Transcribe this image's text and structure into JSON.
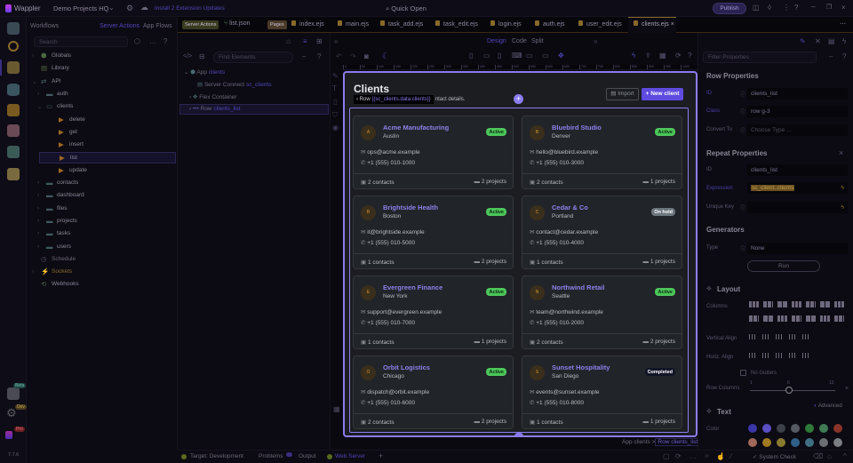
{
  "topbar": {
    "app_name": "Wappler",
    "project": "Demo Projects HQ",
    "updates": "Install 2 Extension Updates",
    "quick_open": "Quick Open",
    "publish": "Publish"
  },
  "rail": {
    "badges": [
      "Beta",
      "Dev",
      "Pro"
    ],
    "version": "7.7.6"
  },
  "workflows": {
    "title": "Workflows",
    "tab_server_actions": "Server Actions",
    "tab_app_flows": "App Flows",
    "search_placeholder": "Search",
    "items": [
      {
        "label": "Globals",
        "depth": 0,
        "icon": "cube-icon",
        "arrow": ">"
      },
      {
        "label": "Library",
        "depth": 0,
        "icon": "book-icon",
        "arrow": ""
      },
      {
        "label": "API",
        "depth": 0,
        "icon": "swap-icon",
        "arrow": "v"
      },
      {
        "label": "auth",
        "depth": 1,
        "icon": "folder-icon",
        "arrow": ">"
      },
      {
        "label": "clients",
        "depth": 1,
        "icon": "folder-open-icon",
        "arrow": "v"
      },
      {
        "label": "delete",
        "depth": 2,
        "icon": "play-icon",
        "arrow": ""
      },
      {
        "label": "get",
        "depth": 2,
        "icon": "play-icon",
        "arrow": ""
      },
      {
        "label": "insert",
        "depth": 2,
        "icon": "play-icon",
        "arrow": ""
      },
      {
        "label": "list",
        "depth": 2,
        "icon": "play-icon",
        "arrow": "",
        "selected": true
      },
      {
        "label": "update",
        "depth": 2,
        "icon": "play-icon",
        "arrow": ""
      },
      {
        "label": "contacts",
        "depth": 1,
        "icon": "folder-icon",
        "arrow": ">"
      },
      {
        "label": "dashboard",
        "depth": 1,
        "icon": "folder-icon",
        "arrow": ">"
      },
      {
        "label": "files",
        "depth": 1,
        "icon": "folder-icon",
        "arrow": ">"
      },
      {
        "label": "projects",
        "depth": 1,
        "icon": "folder-icon",
        "arrow": ">"
      },
      {
        "label": "tasks",
        "depth": 1,
        "icon": "folder-icon",
        "arrow": ">"
      },
      {
        "label": "users",
        "depth": 1,
        "icon": "folder-icon",
        "arrow": ">"
      },
      {
        "label": "Schedule",
        "depth": 0,
        "icon": "clock-icon",
        "arrow": ""
      },
      {
        "label": "Sockets",
        "depth": 0,
        "icon": "plug-icon",
        "arrow": ">"
      },
      {
        "label": "Webhooks",
        "depth": 0,
        "icon": "webhook-icon",
        "arrow": ""
      }
    ]
  },
  "tabs": {
    "server_actions_tag": "Server Actions",
    "pages_tag": "Pages",
    "items": [
      "list.json",
      "index.ejs",
      "main.ejs",
      "task_add.ejs",
      "task_edit.ejs",
      "login.ejs",
      "auth.ejs",
      "user_edit.ejs",
      "clients.ejs"
    ],
    "active": "clients.ejs"
  },
  "tree": {
    "find_placeholder": "Find Elements",
    "items": [
      {
        "label": "App",
        "sub": "clients"
      },
      {
        "label": "Server Connect",
        "sub": "sc_clients"
      },
      {
        "label": "Flex Container",
        "sub": ""
      },
      {
        "label": "Row",
        "sub": "clients_list"
      }
    ]
  },
  "view": {
    "design": "Design",
    "code": "Code",
    "split": "Split"
  },
  "ruler": [
    "0",
    "50",
    "100",
    "150",
    "200",
    "250",
    "300",
    "350",
    "400",
    "450",
    "500",
    "550",
    "600",
    "650",
    "700",
    "750",
    "800",
    "850",
    "900",
    "950",
    "1000"
  ],
  "page": {
    "title": "Clients",
    "subtitle": "ntact details.",
    "tooltip_prefix": "Row",
    "tooltip_expr": "{{sc_clients.data.clients}}",
    "import": "Import",
    "new_client": "+ New client",
    "clients": [
      {
        "initial": "A",
        "name": "Acme Manufacturing",
        "city": "Austin",
        "status": "Active",
        "email": "ops@acme.example",
        "phone": "+1 (555) 010-1000",
        "contacts": "2 contacts",
        "projects": "2 projects"
      },
      {
        "initial": "B",
        "name": "Bluebird Studio",
        "city": "Denver",
        "status": "Active",
        "email": "hello@bluebird.example",
        "phone": "+1 (555) 010-3000",
        "contacts": "2 contacts",
        "projects": "1 projects"
      },
      {
        "initial": "B",
        "name": "Brightside Health",
        "city": "Boston",
        "status": "Active",
        "email": "it@brightside.example",
        "phone": "+1 (555) 010-5000",
        "contacts": "1 contacts",
        "projects": "2 projects"
      },
      {
        "initial": "C",
        "name": "Cedar & Co",
        "city": "Portland",
        "status": "On hold",
        "email": "contact@cedar.example",
        "phone": "+1 (555) 010-4000",
        "contacts": "1 contacts",
        "projects": "1 projects"
      },
      {
        "initial": "E",
        "name": "Evergreen Finance",
        "city": "New York",
        "status": "Active",
        "email": "support@evergreen.example",
        "phone": "+1 (555) 010-7000",
        "contacts": "1 contacts",
        "projects": "1 projects"
      },
      {
        "initial": "N",
        "name": "Northwind Retail",
        "city": "Seattle",
        "status": "Active",
        "email": "team@northwind.example",
        "phone": "+1 (555) 010-2000",
        "contacts": "2 contacts",
        "projects": "2 projects"
      },
      {
        "initial": "O",
        "name": "Orbit Logistics",
        "city": "Chicago",
        "status": "Active",
        "email": "dispatch@orbit.example",
        "phone": "+1 (555) 010-6000",
        "contacts": "2 contacts",
        "projects": "2 projects"
      },
      {
        "initial": "S",
        "name": "Sunset Hospitality",
        "city": "San Diego",
        "status": "Completed",
        "email": "events@sunset.example",
        "phone": "+1 (555) 010-8000",
        "contacts": "1 contacts",
        "projects": "1 projects"
      }
    ],
    "status_colors": {
      "Active": "#4cc55a",
      "On hold": "#6c757d",
      "Completed": "#111527"
    }
  },
  "breadcrumb": {
    "parent": "App clients",
    "sep": ">",
    "current": "Row clients_list"
  },
  "props": {
    "filter_placeholder": "Filter Properties",
    "row_title": "Row Properties",
    "id_label": "ID",
    "id_value": "clients_list",
    "class_label": "Class",
    "class_value": "row g-3",
    "convert_label": "Convert To",
    "convert_placeholder": "Choose Type ...",
    "repeat_title": "Repeat Properties",
    "rid_label": "ID",
    "rid_value": "clients_list",
    "expr_label": "Expression",
    "expr_value": "sc_client..clients",
    "key_label": "Unique Key",
    "gen_title": "Generators",
    "type_label": "Type",
    "type_value": "None",
    "run": "Run",
    "layout_title": "Layout",
    "columns_label": "Columns",
    "valign_label": "Vertical Align",
    "halign_label": "Horiz. Align",
    "no_gutters": "No Gutters",
    "rowcols_label": "Row Columns",
    "rowcols_ticks": [
      "1",
      "6",
      "12"
    ],
    "rowcols_value": 6,
    "text_title": "Text",
    "advanced": "Advanced",
    "color_label": "Color",
    "swatches": [
      "#3b36a8",
      "#5a4fc4",
      "#3d4048",
      "#555a62",
      "#2f7a3a",
      "#3f7a55",
      "#8a3328",
      "#a0685a",
      "#a07a20",
      "#8a7a30",
      "#2f5f88",
      "#3f6f82",
      "#6a6d72",
      "#7a7d82"
    ]
  },
  "status": {
    "target": "Target: Development",
    "problems": "Problems",
    "output": "Output",
    "web_server": "Web Server",
    "system_check": "System Check"
  }
}
